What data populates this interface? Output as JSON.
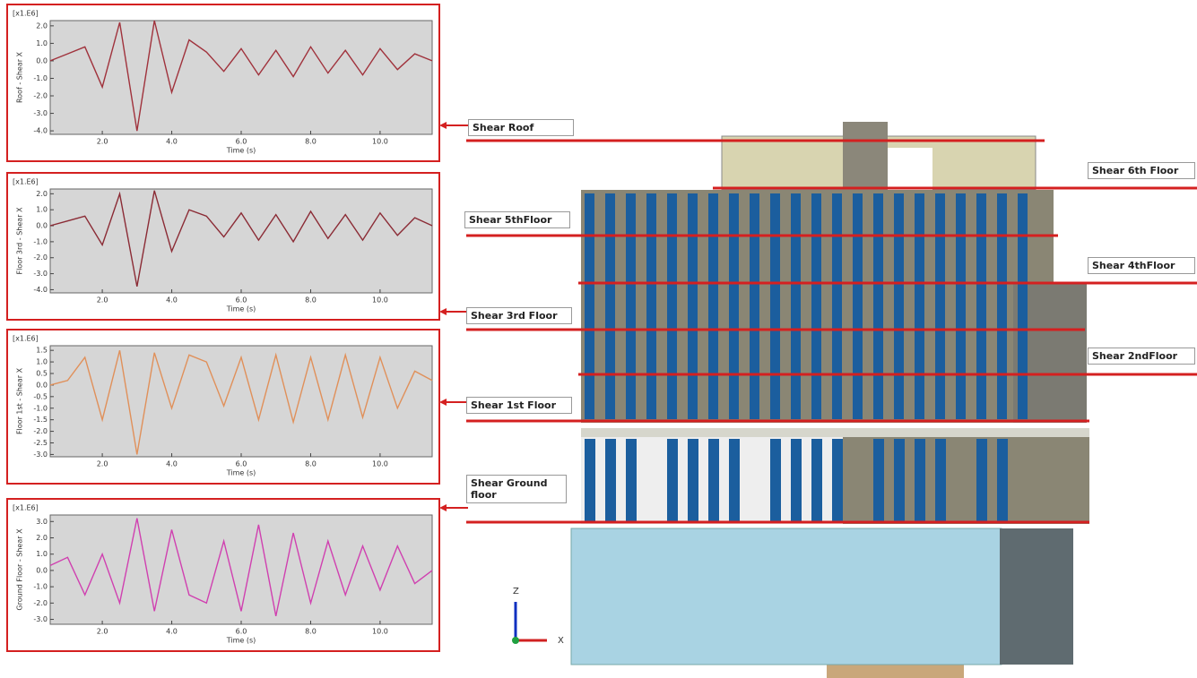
{
  "chart_data": [
    {
      "type": "line",
      "scale_label": "[x1.E6]",
      "ylabel": "Roof - Shear X",
      "xlabel": "Time (s)",
      "color": "#a0323c",
      "x": [
        0.5,
        1,
        1.5,
        2,
        2.5,
        3,
        3.5,
        4,
        4.5,
        5,
        5.5,
        6,
        6.5,
        7,
        7.5,
        8,
        8.5,
        9,
        9.5,
        10,
        10.5,
        11,
        11.5
      ],
      "values": [
        0.0,
        0.4,
        0.8,
        -1.5,
        2.2,
        -4.0,
        2.3,
        -1.8,
        1.2,
        0.5,
        -0.6,
        0.7,
        -0.8,
        0.6,
        -0.9,
        0.8,
        -0.7,
        0.6,
        -0.8,
        0.7,
        -0.5,
        0.4,
        0.0
      ],
      "xlim": [
        0.5,
        11.5
      ],
      "ylim": [
        -4.2,
        2.3
      ],
      "xticks": [
        {
          "value": 2,
          "label": "2.0"
        },
        {
          "value": 4,
          "label": "4.0"
        },
        {
          "value": 6,
          "label": "6.0"
        },
        {
          "value": 8,
          "label": "8.0"
        },
        {
          "value": 10,
          "label": "10.0"
        }
      ],
      "yticks": [
        {
          "value": 2,
          "label": "2.0"
        },
        {
          "value": 1,
          "label": "1.0"
        },
        {
          "value": 0,
          "label": "0.0"
        },
        {
          "value": -1,
          "label": "-1.0"
        },
        {
          "value": -2,
          "label": "-2.0"
        },
        {
          "value": -3,
          "label": "-3.0"
        },
        {
          "value": -4,
          "label": "-4.0"
        }
      ]
    },
    {
      "type": "line",
      "scale_label": "[x1.E6]",
      "ylabel": "Floor 3rd - Shear X",
      "xlabel": "Time (s)",
      "color": "#8b2b35",
      "x": [
        0.5,
        1,
        1.5,
        2,
        2.5,
        3,
        3.5,
        4,
        4.5,
        5,
        5.5,
        6,
        6.5,
        7,
        7.5,
        8,
        8.5,
        9,
        9.5,
        10,
        10.5,
        11,
        11.5
      ],
      "values": [
        0.0,
        0.3,
        0.6,
        -1.2,
        2.0,
        -3.8,
        2.2,
        -1.6,
        1.0,
        0.6,
        -0.7,
        0.8,
        -0.9,
        0.7,
        -1.0,
        0.9,
        -0.8,
        0.7,
        -0.9,
        0.8,
        -0.6,
        0.5,
        0.0
      ],
      "xlim": [
        0.5,
        11.5
      ],
      "ylim": [
        -4.2,
        2.3
      ],
      "xticks": [
        {
          "value": 2,
          "label": "2.0"
        },
        {
          "value": 4,
          "label": "4.0"
        },
        {
          "value": 6,
          "label": "6.0"
        },
        {
          "value": 8,
          "label": "8.0"
        },
        {
          "value": 10,
          "label": "10.0"
        }
      ],
      "yticks": [
        {
          "value": 2,
          "label": "2.0"
        },
        {
          "value": 1,
          "label": "1.0"
        },
        {
          "value": 0,
          "label": "0.0"
        },
        {
          "value": -1,
          "label": "-1.0"
        },
        {
          "value": -2,
          "label": "-2.0"
        },
        {
          "value": -3,
          "label": "-3.0"
        },
        {
          "value": -4,
          "label": "-4.0"
        }
      ]
    },
    {
      "type": "line",
      "scale_label": "[x1.E6]",
      "ylabel": "Floor 1st - Shear X",
      "xlabel": "Time (s)",
      "color": "#e0905a",
      "x": [
        0.5,
        1,
        1.5,
        2,
        2.5,
        3,
        3.5,
        4,
        4.5,
        5,
        5.5,
        6,
        6.5,
        7,
        7.5,
        8,
        8.5,
        9,
        9.5,
        10,
        10.5,
        11,
        11.5
      ],
      "values": [
        0.0,
        0.2,
        1.2,
        -1.5,
        1.5,
        -3.0,
        1.4,
        -1.0,
        1.3,
        1.0,
        -0.9,
        1.2,
        -1.5,
        1.3,
        -1.6,
        1.2,
        -1.5,
        1.3,
        -1.4,
        1.2,
        -1.0,
        0.6,
        0.2
      ],
      "xlim": [
        0.5,
        11.5
      ],
      "ylim": [
        -3.1,
        1.7
      ],
      "xticks": [
        {
          "value": 2,
          "label": "2.0"
        },
        {
          "value": 4,
          "label": "4.0"
        },
        {
          "value": 6,
          "label": "6.0"
        },
        {
          "value": 8,
          "label": "8.0"
        },
        {
          "value": 10,
          "label": "10.0"
        }
      ],
      "yticks": [
        {
          "value": 1.5,
          "label": "1.5"
        },
        {
          "value": 1,
          "label": "1.0"
        },
        {
          "value": 0.5,
          "label": "0.5"
        },
        {
          "value": 0,
          "label": "0.0"
        },
        {
          "value": -0.5,
          "label": "-0.5"
        },
        {
          "value": -1,
          "label": "-1.0"
        },
        {
          "value": -1.5,
          "label": "-1.5"
        },
        {
          "value": -2,
          "label": "-2.0"
        },
        {
          "value": -2.5,
          "label": "-2.5"
        },
        {
          "value": -3,
          "label": "-3.0"
        }
      ]
    },
    {
      "type": "line",
      "scale_label": "[x1.E6]",
      "ylabel": "Ground Floor - Shear X",
      "xlabel": "Time (s)",
      "color": "#d040b0",
      "x": [
        0.5,
        1,
        1.5,
        2,
        2.5,
        3,
        3.5,
        4,
        4.5,
        5,
        5.5,
        6,
        6.5,
        7,
        7.5,
        8,
        8.5,
        9,
        9.5,
        10,
        10.5,
        11,
        11.5
      ],
      "values": [
        0.3,
        0.8,
        -1.5,
        1.0,
        -2.0,
        3.2,
        -2.5,
        2.5,
        -1.5,
        -2.0,
        1.8,
        -2.5,
        2.8,
        -2.8,
        2.3,
        -2.0,
        1.8,
        -1.5,
        1.5,
        -1.2,
        1.5,
        -0.8,
        0.0
      ],
      "xlim": [
        0.5,
        11.5
      ],
      "ylim": [
        -3.3,
        3.4
      ],
      "xticks": [
        {
          "value": 2,
          "label": "2.0"
        },
        {
          "value": 4,
          "label": "4.0"
        },
        {
          "value": 6,
          "label": "6.0"
        },
        {
          "value": 8,
          "label": "8.0"
        },
        {
          "value": 10,
          "label": "10.0"
        }
      ],
      "yticks": [
        {
          "value": 3,
          "label": "3.0"
        },
        {
          "value": 2,
          "label": "2.0"
        },
        {
          "value": 1,
          "label": "1.0"
        },
        {
          "value": 0,
          "label": "0.0"
        },
        {
          "value": -1,
          "label": "-1.0"
        },
        {
          "value": -2,
          "label": "-2.0"
        },
        {
          "value": -3,
          "label": "-3.0"
        }
      ]
    }
  ],
  "building_labels": [
    "Shear Roof",
    "Shear 5thFloor",
    "Shear 3rd Floor",
    "Shear 1st Floor",
    "Shear Ground floor",
    "Shear 6th Floor",
    "Shear 4thFloor",
    "Shear 2ndFloor"
  ],
  "axis_triad": {
    "z": "Z",
    "x": "X"
  }
}
